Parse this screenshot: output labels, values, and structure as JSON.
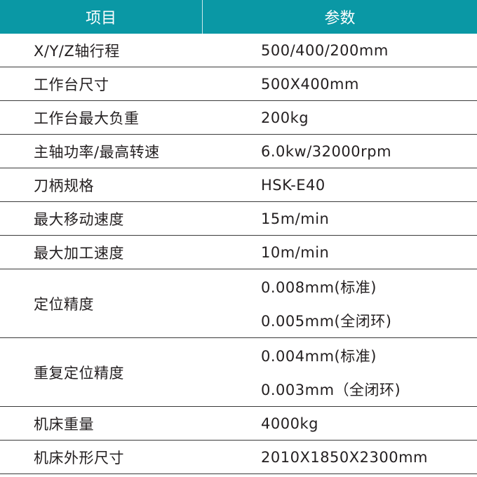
{
  "colors": {
    "header_bg": "#0a98a5",
    "header_text": "#ffffff",
    "row_border": "#3a3a3a"
  },
  "header": {
    "col1": "项目",
    "col2": "参数"
  },
  "rows": [
    {
      "item": "X/Y/Z轴行程",
      "values": [
        "500/400/200mm"
      ]
    },
    {
      "item": "工作台尺寸",
      "values": [
        "500X400mm"
      ]
    },
    {
      "item": "工作台最大负重",
      "values": [
        "200kg"
      ]
    },
    {
      "item": "主轴功率/最高转速",
      "values": [
        "6.0kw/32000rpm"
      ]
    },
    {
      "item": "刀柄规格",
      "values": [
        "HSK-E40"
      ]
    },
    {
      "item": "最大移动速度",
      "values": [
        "15m/min"
      ]
    },
    {
      "item": "最大加工速度",
      "values": [
        "10m/min"
      ]
    },
    {
      "item": "定位精度",
      "values": [
        "0.008mm(标准)",
        "0.005mm(全闭环)"
      ]
    },
    {
      "item": "重复定位精度",
      "values": [
        "0.004mm(标准)",
        "0.003mm（全闭环)"
      ]
    },
    {
      "item": "机床重量",
      "values": [
        "4000kg"
      ]
    },
    {
      "item": "机床外形尺寸",
      "values": [
        "2010X1850X2300mm"
      ]
    }
  ]
}
